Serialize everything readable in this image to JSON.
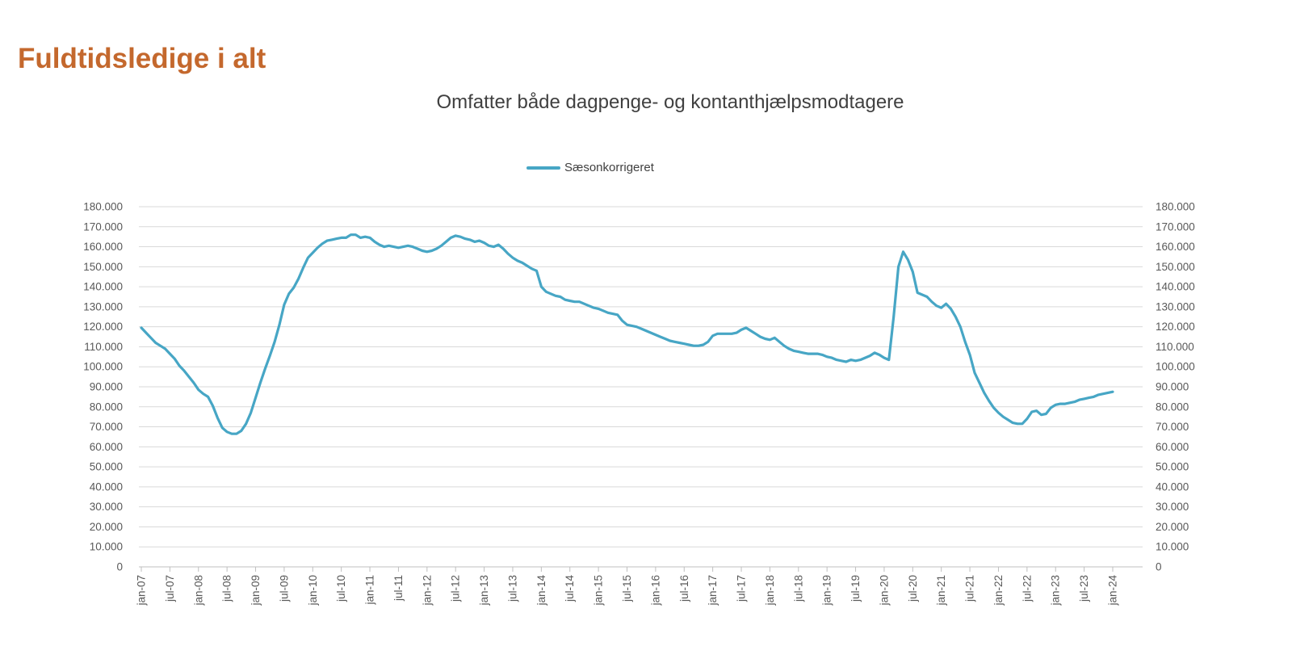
{
  "page": {
    "title": "Fuldtidsledige i alt"
  },
  "chart": {
    "subtitle": "Omfatter både dagpenge- og kontanthjælpsmodtagere"
  },
  "legend": {
    "label": "Sæsonkorrigeret"
  },
  "colors": {
    "title": "#c4682d",
    "series": "#47a6c5",
    "subtitle_text": "#404040",
    "axis_label_text": "#595959",
    "gridline": "#d9d9d9",
    "axis_line": "#bfbfbf"
  },
  "chart_data": {
    "type": "line",
    "title": "Omfatter både dagpenge- og kontanthjælpsmodtagere",
    "xlabel": "",
    "ylabel": "",
    "x_frequency": "monthly",
    "x_start": "jan-07",
    "x_end": "jan-24",
    "x_tick_labels": [
      "jan-07",
      "jul-07",
      "jan-08",
      "jul-08",
      "jan-09",
      "jul-09",
      "jan-10",
      "jul-10",
      "jan-11",
      "jul-11",
      "jan-12",
      "jul-12",
      "jan-13",
      "jul-13",
      "jan-14",
      "jul-14",
      "jan-15",
      "jul-15",
      "jan-16",
      "jul-16",
      "jan-17",
      "jul-17",
      "jan-18",
      "jul-18",
      "jan-19",
      "jul-19",
      "jan-20",
      "jul-20",
      "jan-21",
      "jul-21",
      "jan-22",
      "jul-22",
      "jan-23",
      "jul-23",
      "jan-24"
    ],
    "y_tick_labels": [
      "0",
      "10.000",
      "20.000",
      "30.000",
      "40.000",
      "50.000",
      "60.000",
      "70.000",
      "80.000",
      "90.000",
      "100.000",
      "110.000",
      "120.000",
      "130.000",
      "140.000",
      "150.000",
      "160.000",
      "170.000",
      "180.000"
    ],
    "ylim": [
      0,
      180000
    ],
    "y_tick_step": 10000,
    "grid": "horizontal",
    "legend_position": "top-center",
    "y_axis_sides": "both",
    "series": [
      {
        "name": "Sæsonkorrigeret",
        "color": "#47a6c5",
        "values": [
          119500,
          117000,
          114500,
          112000,
          110500,
          109000,
          106500,
          104000,
          100500,
          98000,
          95000,
          92000,
          88500,
          86500,
          85000,
          80500,
          74500,
          69500,
          67500,
          66500,
          66500,
          68000,
          71500,
          77000,
          84500,
          92000,
          99000,
          105500,
          112500,
          121000,
          131000,
          136500,
          139500,
          144000,
          149500,
          154500,
          157000,
          159500,
          161500,
          163000,
          163500,
          164000,
          164500,
          164500,
          166000,
          166000,
          164500,
          165000,
          164500,
          162500,
          161000,
          160000,
          160500,
          160000,
          159500,
          160000,
          160500,
          160000,
          159000,
          158000,
          157500,
          158000,
          159000,
          160500,
          162500,
          164500,
          165500,
          165000,
          164000,
          163500,
          162500,
          163000,
          162000,
          160500,
          160000,
          161000,
          159000,
          156500,
          154500,
          153000,
          152000,
          150500,
          149000,
          148000,
          140000,
          137500,
          136500,
          135500,
          135000,
          133500,
          133000,
          132500,
          132500,
          131500,
          130500,
          129500,
          129000,
          128000,
          127000,
          126500,
          126000,
          123000,
          121000,
          120500,
          120000,
          119000,
          118000,
          117000,
          116000,
          115000,
          114000,
          113000,
          112500,
          112000,
          111500,
          111000,
          110500,
          110500,
          111000,
          112500,
          115500,
          116500,
          116500,
          116500,
          116500,
          117000,
          118500,
          119500,
          118000,
          116500,
          115000,
          114000,
          113500,
          114500,
          112500,
          110500,
          109000,
          108000,
          107500,
          107000,
          106500,
          106500,
          106500,
          106000,
          105000,
          104500,
          103500,
          103000,
          102500,
          103500,
          103000,
          103500,
          104500,
          105500,
          107000,
          106000,
          104500,
          103500,
          125000,
          150000,
          157500,
          153500,
          147500,
          137000,
          136000,
          135000,
          132500,
          130500,
          129500,
          131500,
          129000,
          125000,
          120000,
          112500,
          106000,
          97000,
          92000,
          87000,
          83000,
          79500,
          77000,
          75000,
          73500,
          72000,
          71500,
          71500,
          74000,
          77500,
          78000,
          76000,
          76500,
          79500,
          81000,
          81500,
          81500,
          82000,
          82500,
          83500,
          84000,
          84500,
          85000,
          86000,
          86500,
          87000,
          87500
        ]
      }
    ]
  }
}
